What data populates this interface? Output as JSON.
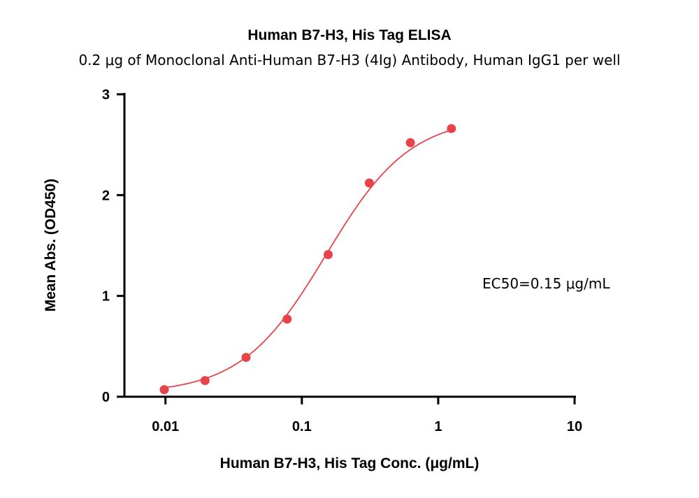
{
  "chart_data": {
    "type": "scatter",
    "title": "Human B7-H3, His Tag ELISA",
    "subtitle": "0.2 μg of Monoclonal Anti-Human B7-H3 (4Ig) Antibody, Human IgG1 per well",
    "xlabel": "Human B7-H3, His Tag Conc. (μg/mL)",
    "ylabel": "Mean Abs. (OD450)",
    "x_scale": "log",
    "xlim": [
      0.005,
      10
    ],
    "ylim": [
      0,
      3
    ],
    "x_ticks": [
      0.01,
      0.1,
      1,
      10
    ],
    "x_tick_labels": [
      "0.01",
      "0.1",
      "1",
      "10"
    ],
    "y_ticks": [
      0,
      1,
      2,
      3
    ],
    "y_tick_labels": [
      "0",
      "1",
      "2",
      "3"
    ],
    "grid": false,
    "legend": "none",
    "series": [
      {
        "color": "#e8434a",
        "x": [
          0.0098,
          0.0195,
          0.039,
          0.078,
          0.156,
          0.3125,
          0.625,
          1.25
        ],
        "y": [
          0.07,
          0.16,
          0.39,
          0.77,
          1.41,
          2.12,
          2.52,
          2.66
        ]
      }
    ],
    "fit_curve": {
      "model": "4PL",
      "color": "#e8434a",
      "bottom": 0.03,
      "top": 2.78,
      "ec50": 0.15,
      "hill": 1.4
    },
    "annotation": "EC50=0.15 μg/mL"
  }
}
